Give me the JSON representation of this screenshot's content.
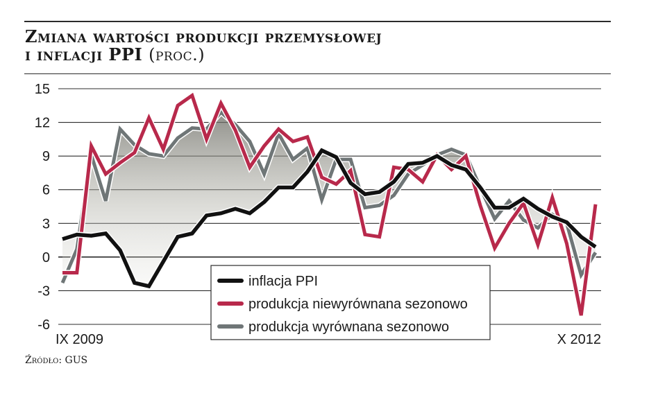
{
  "title": {
    "line1": "Zmiana wartości produkcji przemysłowej",
    "line2": "i inflacji PPI",
    "unit": "(proc.)"
  },
  "source": "Źródło: GUS",
  "chart_data": {
    "type": "line",
    "ylim": [
      -6,
      15
    ],
    "yticks": [
      15,
      12,
      9,
      6,
      3,
      0,
      -3,
      -6
    ],
    "ytick_labels": [
      "15",
      "12",
      "9",
      "6",
      "3",
      "0",
      "-3",
      "-6"
    ],
    "x_label_start": "IX 2009",
    "x_label_end": "X 2012",
    "grid": true,
    "legend_position": "bottom-center",
    "series": [
      {
        "name": "inflacja PPI",
        "color": "#111111",
        "values": [
          1.6,
          2.0,
          1.9,
          2.1,
          0.6,
          -2.3,
          -2.6,
          -0.4,
          1.8,
          2.1,
          3.7,
          3.9,
          4.3,
          3.9,
          4.9,
          6.2,
          6.2,
          7.6,
          9.5,
          8.9,
          6.6,
          5.6,
          5.8,
          6.7,
          8.3,
          8.4,
          9.0,
          8.2,
          7.8,
          6.2,
          4.4,
          4.4,
          5.2,
          4.3,
          3.6,
          3.1,
          1.8,
          0.9
        ]
      },
      {
        "name": "produkcja niewyrównana sezonowo",
        "color": "#b8294b",
        "values": [
          -1.4,
          -1.4,
          9.9,
          7.4,
          8.4,
          9.3,
          12.4,
          9.6,
          13.5,
          14.4,
          10.5,
          13.7,
          11.3,
          8.0,
          9.9,
          11.4,
          10.3,
          10.7,
          7.1,
          6.5,
          7.7,
          2.0,
          1.8,
          8.0,
          7.8,
          6.7,
          9.1,
          7.8,
          9.0,
          4.6,
          0.8,
          3.0,
          4.8,
          1.1,
          5.3,
          1.2,
          -5.2,
          4.7
        ]
      },
      {
        "name": "produkcja wyrównana sezonowo",
        "color": "#6f7677",
        "values": [
          -2.3,
          0.7,
          9.1,
          5.0,
          11.4,
          10.0,
          9.2,
          9.0,
          10.6,
          11.5,
          11.4,
          12.9,
          11.8,
          10.3,
          7.4,
          11.0,
          8.7,
          9.7,
          5.1,
          8.7,
          8.7,
          4.4,
          4.6,
          5.5,
          7.4,
          8.2,
          9.1,
          9.6,
          9.1,
          6.2,
          3.4,
          5.0,
          3.3,
          2.6,
          3.8,
          3.0,
          -1.6,
          0.4
        ]
      }
    ]
  }
}
